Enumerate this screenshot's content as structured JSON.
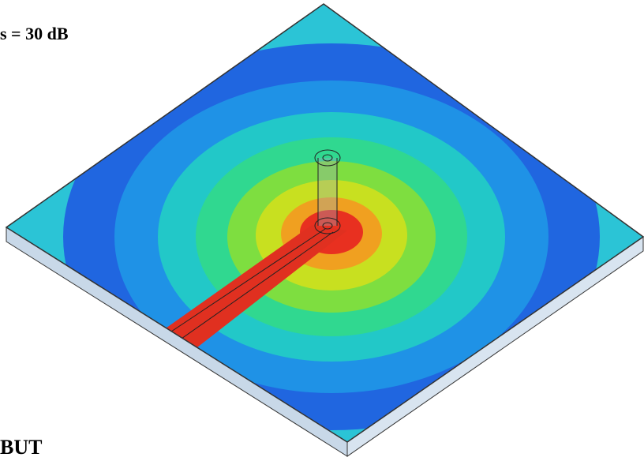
{
  "labels": {
    "top": "s = 30 dB",
    "bottom": "BUT"
  }
}
